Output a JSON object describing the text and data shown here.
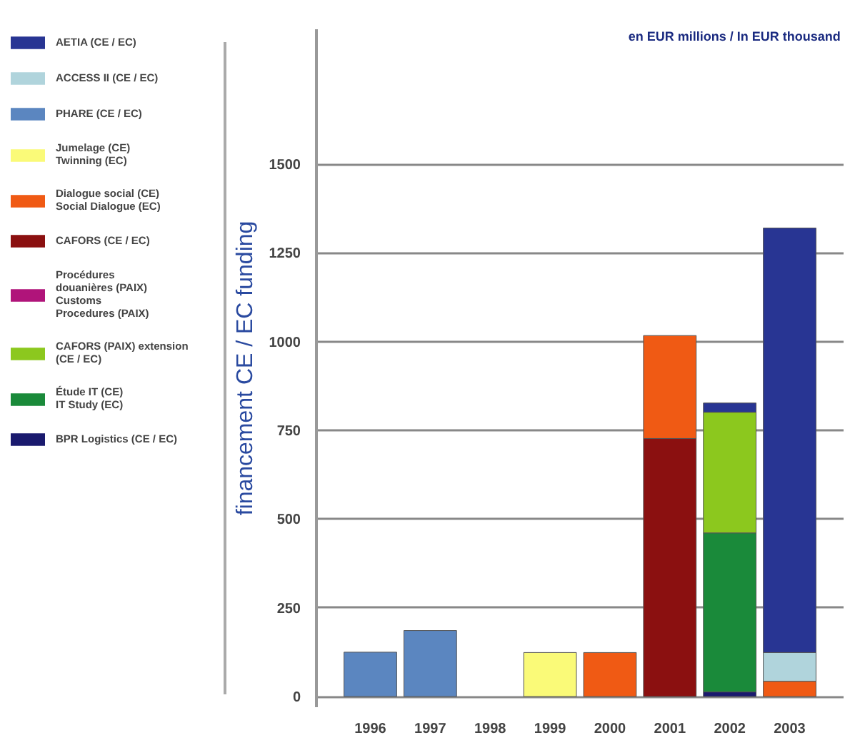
{
  "chart_data": {
    "type": "bar",
    "stacked": true,
    "ylabel": "financement CE / EC funding",
    "annotations": [
      "en EUR millions / In EUR thousand"
    ],
    "categories": [
      "1996",
      "1997",
      "1998",
      "1999",
      "2000",
      "2001",
      "2002",
      "2003"
    ],
    "series": [
      {
        "name": "BPR Logistics (CE / EC)",
        "color": "#1a1a6e",
        "values": [
          null,
          null,
          null,
          null,
          null,
          null,
          13,
          null
        ]
      },
      {
        "name": "Étude IT (CE)\nIT Study (EC)",
        "color": "#1a8a3a",
        "values": [
          null,
          null,
          null,
          null,
          null,
          null,
          448,
          null
        ]
      },
      {
        "name": "CAFORS (PAIX) extension\n(CE / EC)",
        "color": "#8cc81e",
        "values": [
          null,
          null,
          null,
          null,
          null,
          null,
          340,
          null
        ]
      },
      {
        "name": "Procédures\ndouanières (PAIX)\nCustoms\nProcedures (PAIX)",
        "color": "#b0147a",
        "values": [
          null,
          null,
          null,
          null,
          null,
          null,
          null,
          null
        ]
      },
      {
        "name": "CAFORS (CE / EC)",
        "color": "#8b1010",
        "values": [
          null,
          null,
          null,
          null,
          null,
          727,
          null,
          null
        ]
      },
      {
        "name": "Dialogue social (CE)\nSocial Dialogue (EC)",
        "color": "#f05a14",
        "values": [
          null,
          null,
          null,
          null,
          124,
          290,
          null,
          43
        ]
      },
      {
        "name": "Jumelage (CE)\nTwinning (EC)",
        "color": "#fafa78",
        "values": [
          null,
          null,
          null,
          124,
          null,
          null,
          null,
          null
        ]
      },
      {
        "name": "PHARE (CE / EC)",
        "color": "#5b86c0",
        "values": [
          125,
          186,
          null,
          null,
          null,
          null,
          null,
          null
        ]
      },
      {
        "name": "ACCESS II (CE / EC)",
        "color": "#b0d4dc",
        "values": [
          null,
          null,
          null,
          null,
          null,
          null,
          null,
          81
        ]
      },
      {
        "name": "AETIA (CE / EC)",
        "color": "#283593",
        "values": [
          null,
          null,
          null,
          null,
          null,
          null,
          26,
          1196
        ]
      }
    ],
    "ylim": [
      -30,
      1880
    ],
    "yticks": [
      0,
      250,
      500,
      750,
      1000,
      1250,
      1500
    ],
    "grid": "y",
    "legend": "left"
  }
}
